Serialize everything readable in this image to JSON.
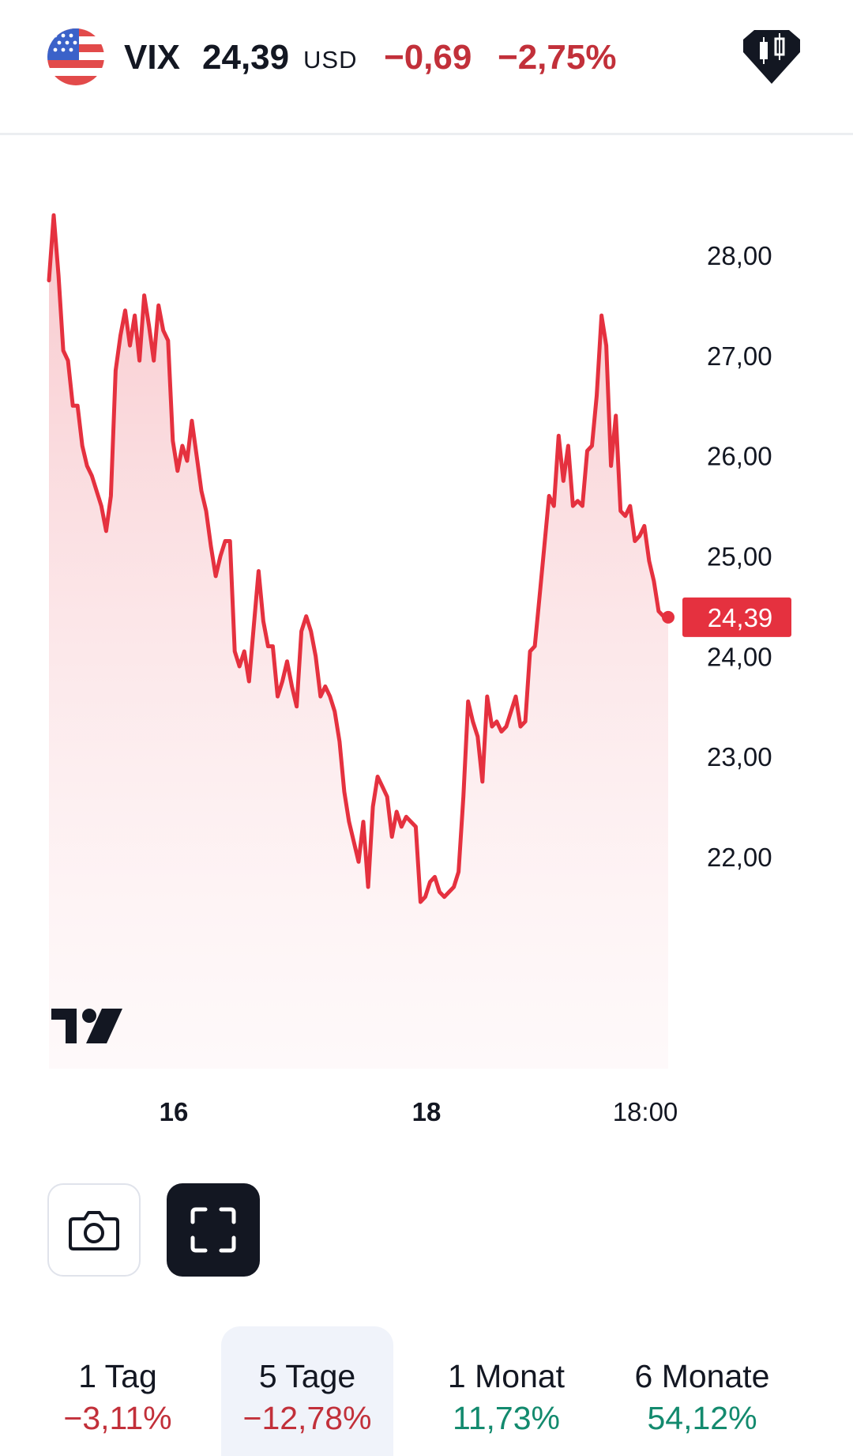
{
  "header": {
    "symbol": "VIX",
    "price": "24,39",
    "currency": "USD",
    "change": "−0,69",
    "change_pct": "−2,75%"
  },
  "colors": {
    "negative": "#c2303a",
    "positive": "#138a6e",
    "line": "#e5313f",
    "dark": "#131722"
  },
  "icons": {
    "flag": "us-flag-icon",
    "badge": "candlestick-badge-icon",
    "camera": "camera-icon",
    "fullscreen": "fullscreen-icon",
    "logo": "tradingview-logo"
  },
  "chart_data": {
    "type": "area",
    "y_ticks": [
      "28,00",
      "27,00",
      "26,00",
      "25,00",
      "24,00",
      "23,00",
      "22,00"
    ],
    "x_ticks": [
      "16",
      "18",
      "18:00"
    ],
    "last_price_label": "24,39",
    "ylim": [
      21.5,
      28.4
    ],
    "grid": false,
    "values": [
      27.75,
      28.4,
      27.8,
      27.05,
      26.95,
      26.5,
      26.5,
      26.1,
      25.9,
      25.8,
      25.65,
      25.5,
      25.25,
      25.6,
      26.85,
      27.2,
      27.45,
      27.1,
      27.4,
      26.95,
      27.6,
      27.3,
      26.95,
      27.5,
      27.25,
      27.15,
      26.15,
      25.85,
      26.1,
      25.95,
      26.35,
      26.0,
      25.65,
      25.45,
      25.1,
      24.8,
      25.0,
      25.15,
      25.15,
      24.05,
      23.9,
      24.05,
      23.75,
      24.3,
      24.85,
      24.35,
      24.1,
      24.1,
      23.6,
      23.75,
      23.95,
      23.7,
      23.5,
      24.25,
      24.4,
      24.25,
      24.0,
      23.6,
      23.7,
      23.6,
      23.45,
      23.15,
      22.65,
      22.35,
      22.15,
      21.95,
      22.35,
      21.7,
      22.5,
      22.8,
      22.7,
      22.6,
      22.2,
      22.45,
      22.3,
      22.4,
      22.35,
      22.3,
      21.55,
      21.6,
      21.75,
      21.8,
      21.65,
      21.6,
      21.65,
      21.7,
      21.85,
      22.6,
      23.55,
      23.35,
      23.2,
      22.75,
      23.6,
      23.3,
      23.35,
      23.25,
      23.3,
      23.45,
      23.6,
      23.3,
      23.35,
      24.05,
      24.1,
      24.6,
      25.1,
      25.6,
      25.5,
      26.2,
      25.75,
      26.1,
      25.5,
      25.55,
      25.5,
      26.05,
      26.1,
      26.6,
      27.4,
      27.1,
      25.9,
      26.4,
      25.45,
      25.4,
      25.5,
      25.15,
      25.2,
      25.3,
      24.95,
      24.75,
      24.45,
      24.4,
      24.39
    ]
  },
  "buttons": {
    "camera": "camera",
    "fullscreen": "fullscreen"
  },
  "tabs": [
    {
      "label": "1 Tag",
      "value": "−3,11%",
      "sign": "neg",
      "active": false
    },
    {
      "label": "5 Tage",
      "value": "−12,78%",
      "sign": "neg",
      "active": true
    },
    {
      "label": "1 Monat",
      "value": "11,73%",
      "sign": "pos",
      "active": false
    },
    {
      "label": "6 Monate",
      "value": "54,12%",
      "sign": "pos",
      "active": false
    }
  ]
}
